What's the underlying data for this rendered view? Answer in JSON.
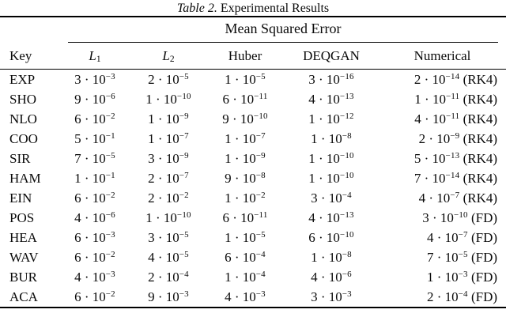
{
  "caption": {
    "label": "Table 2.",
    "text": "Experimental Results"
  },
  "table": {
    "group_header": "Mean Squared Error",
    "columns": [
      {
        "label": "Key"
      },
      {
        "label": "L",
        "sub": "1",
        "math": true
      },
      {
        "label": "L",
        "sub": "2",
        "math": true
      },
      {
        "label": "Huber"
      },
      {
        "label": "DEQGAN"
      },
      {
        "label": "Numerical"
      }
    ],
    "rows": [
      {
        "key": "EXP",
        "values": [
          {
            "c": 3,
            "e": -3
          },
          {
            "c": 2,
            "e": -5
          },
          {
            "c": 1,
            "e": -5
          },
          {
            "c": 3,
            "e": -16
          },
          {
            "c": 2,
            "e": -14
          }
        ],
        "method": "RK4"
      },
      {
        "key": "SHO",
        "values": [
          {
            "c": 9,
            "e": -6
          },
          {
            "c": 1,
            "e": -10
          },
          {
            "c": 6,
            "e": -11
          },
          {
            "c": 4,
            "e": -13
          },
          {
            "c": 1,
            "e": -11
          }
        ],
        "method": "RK4"
      },
      {
        "key": "NLO",
        "values": [
          {
            "c": 6,
            "e": -2
          },
          {
            "c": 1,
            "e": -9
          },
          {
            "c": 9,
            "e": -10
          },
          {
            "c": 1,
            "e": -12
          },
          {
            "c": 4,
            "e": -11
          }
        ],
        "method": "RK4"
      },
      {
        "key": "COO",
        "values": [
          {
            "c": 5,
            "e": -1
          },
          {
            "c": 1,
            "e": -7
          },
          {
            "c": 1,
            "e": -7
          },
          {
            "c": 1,
            "e": -8
          },
          {
            "c": 2,
            "e": -9
          }
        ],
        "method": "RK4"
      },
      {
        "key": "SIR",
        "values": [
          {
            "c": 7,
            "e": -5
          },
          {
            "c": 3,
            "e": -9
          },
          {
            "c": 1,
            "e": -9
          },
          {
            "c": 1,
            "e": -10
          },
          {
            "c": 5,
            "e": -13
          }
        ],
        "method": "RK4"
      },
      {
        "key": "HAM",
        "values": [
          {
            "c": 1,
            "e": -1
          },
          {
            "c": 2,
            "e": -7
          },
          {
            "c": 9,
            "e": -8
          },
          {
            "c": 1,
            "e": -10
          },
          {
            "c": 7,
            "e": -14
          }
        ],
        "method": "RK4"
      },
      {
        "key": "EIN",
        "values": [
          {
            "c": 6,
            "e": -2
          },
          {
            "c": 2,
            "e": -2
          },
          {
            "c": 1,
            "e": -2
          },
          {
            "c": 3,
            "e": -4
          },
          {
            "c": 4,
            "e": -7
          }
        ],
        "method": "RK4"
      },
      {
        "key": "POS",
        "values": [
          {
            "c": 4,
            "e": -6
          },
          {
            "c": 1,
            "e": -10
          },
          {
            "c": 6,
            "e": -11
          },
          {
            "c": 4,
            "e": -13
          },
          {
            "c": 3,
            "e": -10
          }
        ],
        "method": "FD"
      },
      {
        "key": "HEA",
        "values": [
          {
            "c": 6,
            "e": -3
          },
          {
            "c": 3,
            "e": -5
          },
          {
            "c": 1,
            "e": -5
          },
          {
            "c": 6,
            "e": -10
          },
          {
            "c": 4,
            "e": -7
          }
        ],
        "method": "FD"
      },
      {
        "key": "WAV",
        "values": [
          {
            "c": 6,
            "e": -2
          },
          {
            "c": 4,
            "e": -5
          },
          {
            "c": 6,
            "e": -4
          },
          {
            "c": 1,
            "e": -8
          },
          {
            "c": 7,
            "e": -5
          }
        ],
        "method": "FD"
      },
      {
        "key": "BUR",
        "values": [
          {
            "c": 4,
            "e": -3
          },
          {
            "c": 2,
            "e": -4
          },
          {
            "c": 1,
            "e": -4
          },
          {
            "c": 4,
            "e": -6
          },
          {
            "c": 1,
            "e": -3
          }
        ],
        "method": "FD"
      },
      {
        "key": "ACA",
        "values": [
          {
            "c": 6,
            "e": -2
          },
          {
            "c": 9,
            "e": -3
          },
          {
            "c": 4,
            "e": -3
          },
          {
            "c": 3,
            "e": -3
          },
          {
            "c": 2,
            "e": -4
          }
        ],
        "method": "FD"
      }
    ]
  }
}
